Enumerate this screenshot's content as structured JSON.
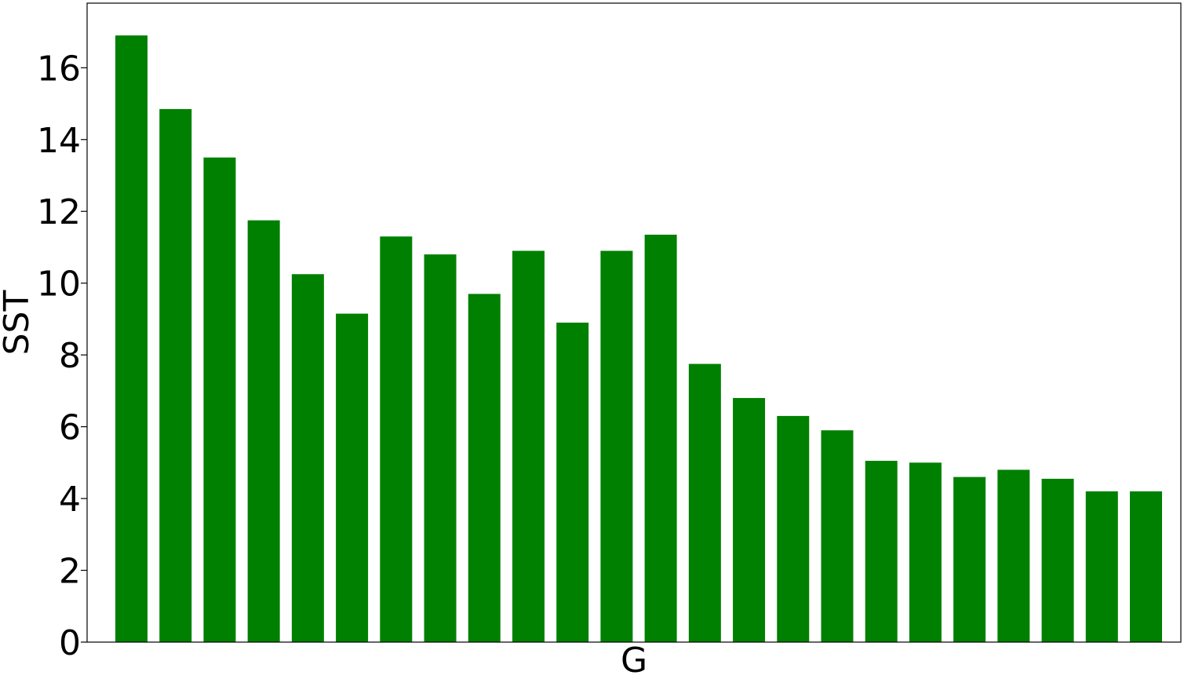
{
  "chart_data": {
    "type": "bar",
    "xlabel": "G",
    "ylabel": "SST",
    "ylim": [
      0,
      17.8
    ],
    "yticks": [
      0,
      2,
      4,
      6,
      8,
      10,
      12,
      14,
      16
    ],
    "ytick_labels": [
      "0",
      "2",
      "4",
      "6",
      "8",
      "10",
      "12",
      "14",
      "16"
    ],
    "grid": false,
    "bar_color": "#008000",
    "values": [
      16.9,
      14.85,
      13.5,
      11.75,
      10.25,
      9.15,
      11.3,
      10.8,
      9.7,
      10.9,
      8.9,
      10.9,
      11.35,
      7.75,
      6.8,
      6.3,
      5.9,
      5.05,
      5.0,
      4.6,
      4.8,
      4.55,
      4.2,
      4.2
    ]
  }
}
